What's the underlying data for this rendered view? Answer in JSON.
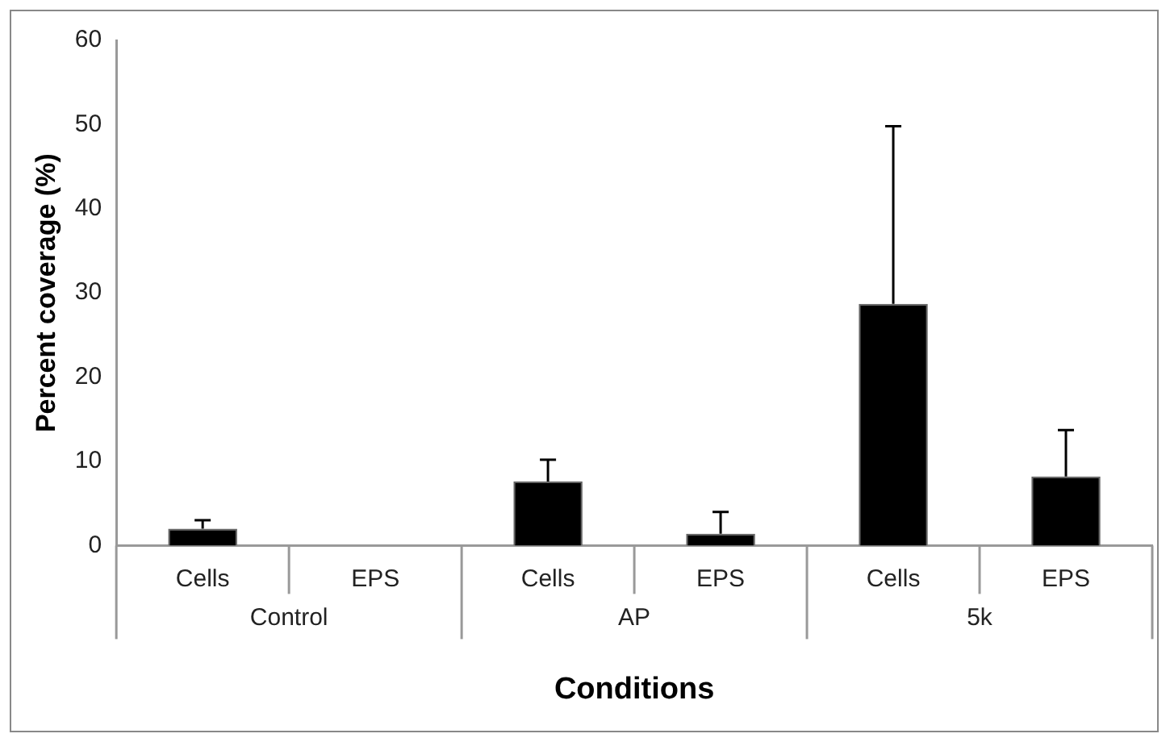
{
  "chart_data": {
    "type": "bar",
    "xlabel": "Conditions",
    "ylabel": "Percent coverage (%)",
    "categories": [
      "Cells",
      "EPS",
      "Cells",
      "EPS",
      "Cells",
      "EPS"
    ],
    "values": [
      2,
      0,
      7.6,
      1.4,
      28.7,
      8.2
    ],
    "errors": [
      [
        2,
        3
      ],
      null,
      [
        7.6,
        10.2
      ],
      [
        1.4,
        4
      ],
      [
        28.7,
        49.8
      ],
      [
        8.2,
        13.7
      ]
    ],
    "color": "#000000",
    "annotations": [
      "Control",
      "AP",
      "5k"
    ],
    "ylim": [
      0,
      60
    ],
    "yticks": [
      0,
      10,
      20,
      30,
      40,
      50,
      60
    ],
    "grid": false,
    "legend": false
  }
}
